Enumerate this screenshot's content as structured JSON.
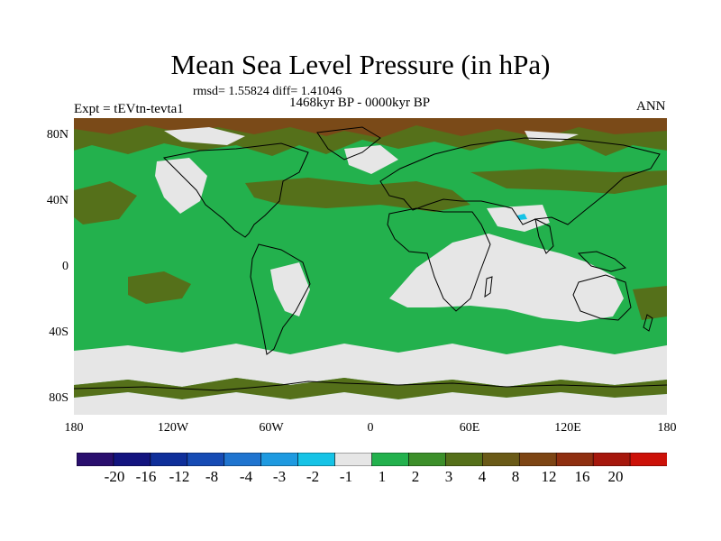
{
  "title": "Mean Sea Level Pressure (in hPa)",
  "rmsd_text": "rmsd= 1.55824 diff= 1.41046",
  "period": "1468kyr BP - 0000kyr BP",
  "experiment": "Expt = tEVtn-tevta1",
  "season": "ANN",
  "lat_labels": [
    "80N",
    "40N",
    "0",
    "40S",
    "80S"
  ],
  "lon_labels": [
    "180",
    "120W",
    "60W",
    "0",
    "60E",
    "120E",
    "180"
  ],
  "colorbar": {
    "colors": [
      "#2a0f6e",
      "#13147f",
      "#0f2f9a",
      "#164bb4",
      "#1f74cf",
      "#1e9ae0",
      "#16c3e6",
      "#e6e6e6",
      "#23b14d",
      "#3c8f2a",
      "#55701a",
      "#6a5a17",
      "#7d4514",
      "#8f2f10",
      "#a6170c",
      "#cc1108"
    ],
    "labels": [
      "-20",
      "-16",
      "-12",
      "-8",
      "-4",
      "-3",
      "-2",
      "-1",
      "1",
      "2",
      "3",
      "4",
      "8",
      "12",
      "16",
      "20"
    ]
  },
  "map_colors": {
    "green": "#23b14d",
    "dark_green": "#3c8f2a",
    "olive": "#55701a",
    "brown": "#7a4a18",
    "gray": "#e6e6e6",
    "light_blue": "#16c3e6",
    "blue": "#1e9ae0"
  }
}
